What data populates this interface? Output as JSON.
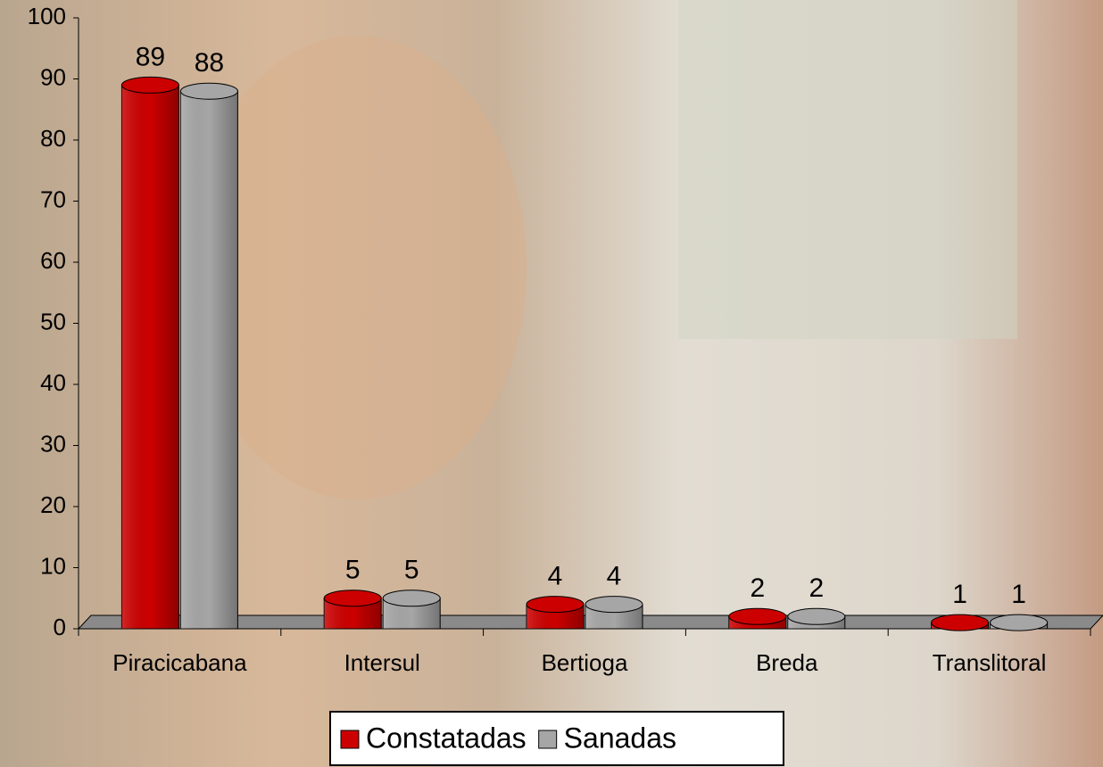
{
  "chart_data": {
    "type": "bar",
    "categories": [
      "Piracicabana",
      "Intersul",
      "Bertioga",
      "Breda",
      "Translitoral"
    ],
    "series": [
      {
        "name": "Constatadas",
        "color": "#cc0000",
        "values": [
          89,
          5,
          4,
          2,
          1
        ]
      },
      {
        "name": "Sanadas",
        "color": "#a6a6a6",
        "values": [
          88,
          5,
          4,
          2,
          1
        ]
      }
    ],
    "ylim": [
      0,
      100
    ],
    "yticks": [
      0,
      10,
      20,
      30,
      40,
      50,
      60,
      70,
      80,
      90,
      100
    ],
    "legend": "bottom"
  }
}
